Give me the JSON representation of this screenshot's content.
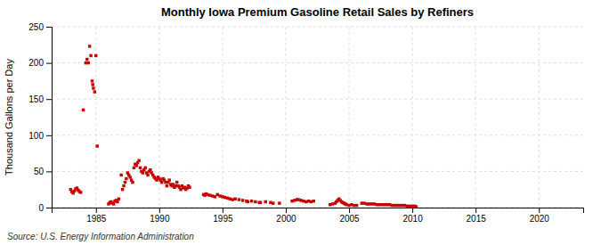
{
  "chart_data": {
    "type": "scatter",
    "title": "Monthly Iowa Premium Gasoline Retail Sales by Refiners",
    "ylabel": "Thousand Gallons per Day",
    "annotations": [
      "Source: U.S. Energy Information Administration"
    ],
    "color": "#cc0000",
    "marker": "square",
    "grid": true,
    "xlim": [
      1981.5,
      2023.5
    ],
    "ylim": [
      0,
      250
    ],
    "xticks": [
      1985,
      1990,
      1995,
      2000,
      2005,
      2010,
      2015,
      2020
    ],
    "yticks": [
      0,
      50,
      100,
      150,
      200,
      250
    ],
    "x": [
      1983.0,
      1983.1,
      1983.2,
      1983.3,
      1983.4,
      1983.5,
      1983.6,
      1983.7,
      1983.8,
      1984.0,
      1984.2,
      1984.3,
      1984.4,
      1984.5,
      1984.6,
      1984.7,
      1984.75,
      1984.8,
      1984.9,
      1985.0,
      1985.1,
      1986.0,
      1986.1,
      1986.2,
      1986.3,
      1986.4,
      1986.5,
      1986.6,
      1986.7,
      1986.8,
      1987.0,
      1987.1,
      1987.2,
      1987.3,
      1987.4,
      1987.5,
      1987.6,
      1987.7,
      1987.8,
      1987.9,
      1988.0,
      1988.1,
      1988.2,
      1988.3,
      1988.4,
      1988.5,
      1988.6,
      1988.7,
      1988.8,
      1988.9,
      1989.0,
      1989.1,
      1989.2,
      1989.3,
      1989.4,
      1989.5,
      1989.6,
      1989.7,
      1989.8,
      1989.9,
      1990.0,
      1990.1,
      1990.2,
      1990.3,
      1990.4,
      1990.5,
      1990.6,
      1990.7,
      1990.8,
      1990.9,
      1991.0,
      1991.1,
      1991.2,
      1991.3,
      1991.4,
      1991.5,
      1991.6,
      1991.7,
      1991.8,
      1991.9,
      1992.0,
      1992.1,
      1992.2,
      1992.3,
      1992.4,
      1993.5,
      1993.6,
      1993.7,
      1993.8,
      1994.0,
      1994.2,
      1994.4,
      1994.6,
      1994.8,
      1995.0,
      1995.2,
      1995.4,
      1995.6,
      1995.8,
      1996.0,
      1996.3,
      1996.6,
      1996.9,
      1997.0,
      1997.3,
      1997.6,
      1997.9,
      1998.0,
      1998.4,
      1998.8,
      1999.0,
      1999.5,
      2000.5,
      2000.7,
      2000.9,
      2001.0,
      2001.2,
      2001.4,
      2001.6,
      2001.8,
      2002.0,
      2002.2,
      2003.5,
      2003.7,
      2003.9,
      2004.0,
      2004.1,
      2004.2,
      2004.3,
      2004.4,
      2004.5,
      2004.6,
      2004.7,
      2004.8,
      2005.0,
      2005.2,
      2005.4,
      2005.6,
      2006.0,
      2006.2,
      2006.4,
      2006.6,
      2006.8,
      2007.0,
      2007.2,
      2007.4,
      2007.6,
      2007.8,
      2008.0,
      2008.2,
      2008.4,
      2008.6,
      2008.8,
      2009.0,
      2009.2,
      2009.4,
      2009.6,
      2009.8,
      2010.0,
      2010.2,
      2010.3
    ],
    "values": [
      25,
      22,
      20,
      23,
      26,
      27,
      24,
      22,
      21,
      135,
      200,
      205,
      200,
      223,
      210,
      175,
      170,
      165,
      160,
      210,
      85,
      5,
      7,
      8,
      6,
      5,
      9,
      10,
      8,
      12,
      45,
      25,
      30,
      35,
      40,
      48,
      45,
      42,
      38,
      35,
      55,
      60,
      58,
      62,
      65,
      55,
      50,
      48,
      52,
      55,
      48,
      45,
      50,
      52,
      48,
      45,
      42,
      40,
      38,
      42,
      40,
      38,
      35,
      40,
      38,
      35,
      30,
      35,
      38,
      32,
      30,
      32,
      28,
      30,
      35,
      30,
      28,
      25,
      30,
      27,
      28,
      25,
      27,
      30,
      28,
      18,
      17,
      19,
      18,
      17,
      16,
      15,
      18,
      16,
      15,
      14,
      13,
      12,
      11,
      12,
      11,
      10,
      9,
      8,
      9,
      8,
      7,
      7,
      8,
      7,
      6,
      6,
      9,
      10,
      11,
      11,
      10,
      9,
      8,
      9,
      8,
      9,
      4,
      5,
      6,
      8,
      10,
      12,
      10,
      8,
      7,
      6,
      5,
      4,
      3,
      4,
      3,
      3,
      6,
      6,
      5,
      5,
      5,
      5,
      4,
      4,
      4,
      4,
      4,
      4,
      3,
      3,
      3,
      3,
      3,
      3,
      2,
      2,
      2,
      2,
      1
    ]
  }
}
